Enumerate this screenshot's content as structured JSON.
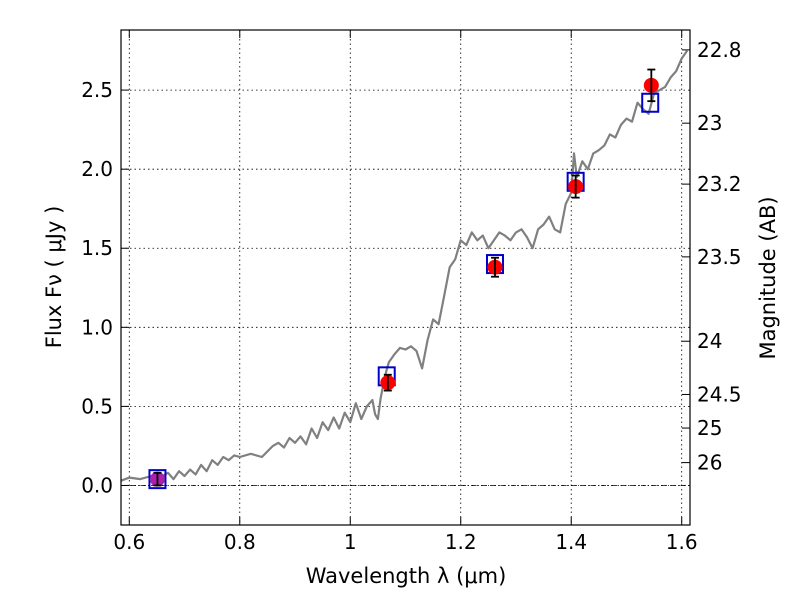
{
  "chart_data": {
    "type": "scatter",
    "xlabel": "Wavelength  λ (μm)",
    "ylabel": "Flux  Fν  ( μJy )",
    "y2label": "Magnitude (AB)",
    "xlim": [
      0.585,
      1.615
    ],
    "ylim": [
      -0.25,
      2.88
    ],
    "xticks": [
      0.6,
      0.8,
      1.0,
      1.2,
      1.4,
      1.6
    ],
    "xtick_labels": [
      "0.6",
      "0.8",
      "1",
      "1.2",
      "1.4",
      "1.6"
    ],
    "yticks": [
      0.0,
      0.5,
      1.0,
      1.5,
      2.0,
      2.5
    ],
    "ytick_labels": [
      "0.0",
      "0.5",
      "1.0",
      "1.5",
      "2.0",
      "2.5"
    ],
    "mag_ticks": [
      "22.8",
      "23",
      "23.2",
      "23.5",
      "24",
      "24.5",
      "25",
      "26"
    ],
    "grid": true,
    "zero_line": true,
    "colors": {
      "spectrum": "#808080",
      "model": "#0000cc",
      "observed": "#ff0000",
      "purple_marker": "#aa22aa",
      "errorbar": "#000000"
    },
    "spectrum": {
      "x": [
        0.585,
        0.6,
        0.62,
        0.64,
        0.655,
        0.67,
        0.68,
        0.69,
        0.7,
        0.71,
        0.72,
        0.73,
        0.74,
        0.75,
        0.76,
        0.77,
        0.78,
        0.79,
        0.8,
        0.82,
        0.84,
        0.86,
        0.87,
        0.88,
        0.89,
        0.9,
        0.91,
        0.92,
        0.93,
        0.94,
        0.95,
        0.96,
        0.97,
        0.98,
        0.99,
        1.0,
        1.01,
        1.02,
        1.03,
        1.04,
        1.045,
        1.05,
        1.055,
        1.06,
        1.065,
        1.07,
        1.08,
        1.09,
        1.1,
        1.11,
        1.12,
        1.13,
        1.14,
        1.15,
        1.16,
        1.17,
        1.18,
        1.19,
        1.2,
        1.21,
        1.22,
        1.23,
        1.24,
        1.25,
        1.26,
        1.27,
        1.28,
        1.29,
        1.3,
        1.31,
        1.32,
        1.33,
        1.34,
        1.35,
        1.36,
        1.37,
        1.38,
        1.39,
        1.4,
        1.405,
        1.41,
        1.42,
        1.43,
        1.44,
        1.45,
        1.46,
        1.47,
        1.48,
        1.49,
        1.5,
        1.51,
        1.52,
        1.53,
        1.54,
        1.55,
        1.56,
        1.57,
        1.58,
        1.59,
        1.6,
        1.61
      ],
      "y": [
        0.03,
        0.05,
        0.04,
        0.06,
        0.05,
        0.08,
        0.04,
        0.09,
        0.06,
        0.1,
        0.07,
        0.13,
        0.09,
        0.16,
        0.13,
        0.18,
        0.16,
        0.19,
        0.18,
        0.2,
        0.18,
        0.25,
        0.27,
        0.24,
        0.3,
        0.27,
        0.31,
        0.26,
        0.36,
        0.3,
        0.4,
        0.35,
        0.43,
        0.36,
        0.46,
        0.4,
        0.52,
        0.42,
        0.5,
        0.54,
        0.45,
        0.42,
        0.55,
        0.64,
        0.72,
        0.78,
        0.83,
        0.87,
        0.86,
        0.88,
        0.85,
        0.74,
        0.92,
        1.05,
        1.02,
        1.2,
        1.38,
        1.43,
        1.55,
        1.52,
        1.6,
        1.55,
        1.58,
        1.5,
        1.55,
        1.6,
        1.58,
        1.55,
        1.6,
        1.62,
        1.57,
        1.5,
        1.62,
        1.65,
        1.7,
        1.62,
        1.6,
        1.78,
        1.85,
        2.1,
        1.95,
        2.05,
        2.0,
        2.1,
        2.12,
        2.15,
        2.22,
        2.2,
        2.28,
        2.32,
        2.3,
        2.42,
        2.38,
        2.35,
        2.48,
        2.5,
        2.52,
        2.58,
        2.62,
        2.7,
        2.75
      ]
    },
    "model_points": [
      {
        "x": 0.651,
        "y": 0.04
      },
      {
        "x": 1.066,
        "y": 0.69
      },
      {
        "x": 1.262,
        "y": 1.4
      },
      {
        "x": 1.408,
        "y": 1.92
      },
      {
        "x": 1.543,
        "y": 2.42
      }
    ],
    "observed_points": [
      {
        "x": 0.651,
        "y": 0.04,
        "err": 0.04,
        "color": "purple_marker"
      },
      {
        "x": 1.068,
        "y": 0.65,
        "err": 0.05,
        "color": "observed"
      },
      {
        "x": 1.262,
        "y": 1.38,
        "err": 0.06,
        "color": "observed"
      },
      {
        "x": 1.408,
        "y": 1.89,
        "err": 0.07,
        "color": "observed"
      },
      {
        "x": 1.545,
        "y": 2.53,
        "err": 0.1,
        "color": "observed"
      }
    ]
  }
}
